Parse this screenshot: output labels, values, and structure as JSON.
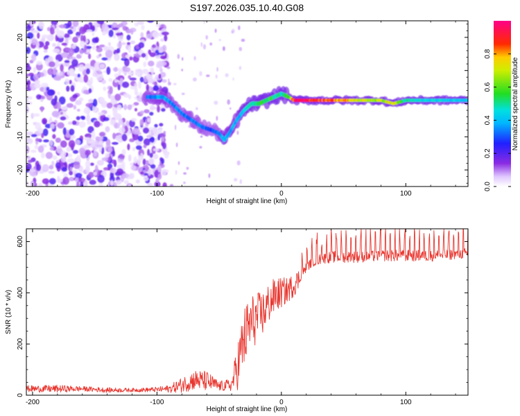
{
  "chart_data": [
    {
      "type": "heatmap",
      "title": "S197.2026.035.10.40.G08",
      "xlabel": "Height of straight line (km)",
      "ylabel": "Frequency (Hz)",
      "xlim": [
        -205,
        150
      ],
      "ylim": [
        -25,
        25
      ],
      "xticks": [
        -200,
        -100,
        0,
        100
      ],
      "xtick_labels": [
        "-200",
        "-100",
        "0",
        "100"
      ],
      "yticks": [
        -20,
        -10,
        0,
        10,
        20
      ],
      "ytick_labels": [
        "-20",
        "-10",
        "0",
        "10",
        "20"
      ],
      "colorbar": {
        "label": "Normalized spectral amplitude",
        "range": [
          0,
          1
        ],
        "ticks": [
          0.0,
          0.2,
          0.4,
          0.6,
          0.8
        ],
        "tick_labels": [
          "0.0",
          "0.2",
          "0.4",
          "0.6",
          "0.8"
        ],
        "colormap": "rainbow (white-violet-blue-cyan-green-yellow-red-magenta)"
      },
      "ridge": {
        "description": "Dominant frequency track vs height",
        "x": [
          -105,
          -95,
          -88,
          -80,
          -72,
          -64,
          -56,
          -50,
          -46,
          -42,
          -36,
          -30,
          -24,
          -18,
          -12,
          -6,
          0,
          6,
          10,
          20,
          40,
          60,
          80,
          90,
          100,
          120,
          150
        ],
        "y": [
          2,
          2,
          0,
          -3,
          -5,
          -7,
          -8,
          -9,
          -11,
          -9,
          -5,
          -2,
          0,
          0,
          1,
          2,
          3,
          2,
          1,
          1,
          1,
          1,
          1,
          0,
          1,
          1,
          1
        ],
        "amplitude": [
          0.35,
          0.4,
          0.35,
          0.35,
          0.35,
          0.35,
          0.3,
          0.35,
          0.45,
          0.4,
          0.4,
          0.45,
          0.5,
          0.55,
          0.6,
          0.55,
          0.5,
          0.6,
          0.95,
          0.98,
          0.92,
          0.75,
          0.7,
          0.78,
          0.5,
          0.45,
          0.45
        ]
      },
      "noise_region_x": [
        -205,
        -100
      ]
    },
    {
      "type": "line",
      "xlabel": "Height of straight line (km)",
      "ylabel": "SNR (10 * v/v)",
      "xlim": [
        -205,
        150
      ],
      "ylim": [
        0,
        650
      ],
      "xticks": [
        -200,
        -100,
        0,
        100
      ],
      "xtick_labels": [
        "-200",
        "-100",
        "0",
        "100"
      ],
      "yticks": [
        0,
        200,
        400,
        600
      ],
      "ytick_labels": [
        "0",
        "200",
        "400",
        "600"
      ],
      "series": [
        {
          "name": "SNR",
          "color": "#e8352e",
          "x": [
            -205,
            -180,
            -160,
            -140,
            -120,
            -100,
            -90,
            -80,
            -70,
            -60,
            -50,
            -40,
            -35,
            -30,
            -25,
            -20,
            -15,
            -10,
            -5,
            0,
            5,
            10,
            15,
            20,
            25,
            30,
            40,
            60,
            80,
            100,
            120,
            140,
            150
          ],
          "y_mean": [
            25,
            25,
            25,
            20,
            20,
            22,
            25,
            40,
            60,
            55,
            35,
            40,
            120,
            220,
            280,
            300,
            320,
            360,
            390,
            400,
            410,
            430,
            460,
            500,
            520,
            530,
            540,
            540,
            545,
            545,
            545,
            550,
            555
          ],
          "y_spread": [
            25,
            30,
            20,
            20,
            15,
            20,
            30,
            60,
            80,
            80,
            40,
            50,
            200,
            250,
            230,
            200,
            180,
            160,
            140,
            120,
            100,
            90,
            80,
            80,
            80,
            90,
            100,
            100,
            100,
            100,
            100,
            90,
            90
          ]
        }
      ]
    }
  ]
}
